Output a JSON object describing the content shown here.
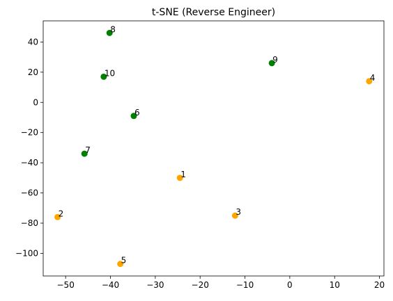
{
  "chart_data": {
    "type": "scatter",
    "title": "t-SNE (Reverse Engineer)",
    "xlabel": "",
    "ylabel": "",
    "xlim": [
      -55,
      21
    ],
    "ylim": [
      -115,
      54
    ],
    "xticks": [
      -50,
      -40,
      -30,
      -20,
      -10,
      0,
      10,
      20
    ],
    "yticks": [
      40,
      20,
      0,
      -20,
      -40,
      -60,
      -80,
      -100
    ],
    "grid": false,
    "colors": {
      "group_a": "#ffa500",
      "group_b": "#008000"
    },
    "points": [
      {
        "label": "1",
        "x": -24.5,
        "y": -50,
        "group": "group_a"
      },
      {
        "label": "2",
        "x": -51.8,
        "y": -76,
        "group": "group_a"
      },
      {
        "label": "3",
        "x": -12.2,
        "y": -75,
        "group": "group_a"
      },
      {
        "label": "4",
        "x": 17.7,
        "y": 14,
        "group": "group_a"
      },
      {
        "label": "5",
        "x": -37.8,
        "y": -107,
        "group": "group_a"
      },
      {
        "label": "6",
        "x": -34.8,
        "y": -9,
        "group": "group_b"
      },
      {
        "label": "7",
        "x": -45.8,
        "y": -34,
        "group": "group_b"
      },
      {
        "label": "8",
        "x": -40.2,
        "y": 46,
        "group": "group_b"
      },
      {
        "label": "9",
        "x": -4.0,
        "y": 26,
        "group": "group_b"
      },
      {
        "label": "10",
        "x": -41.5,
        "y": 17,
        "group": "group_b"
      }
    ]
  }
}
